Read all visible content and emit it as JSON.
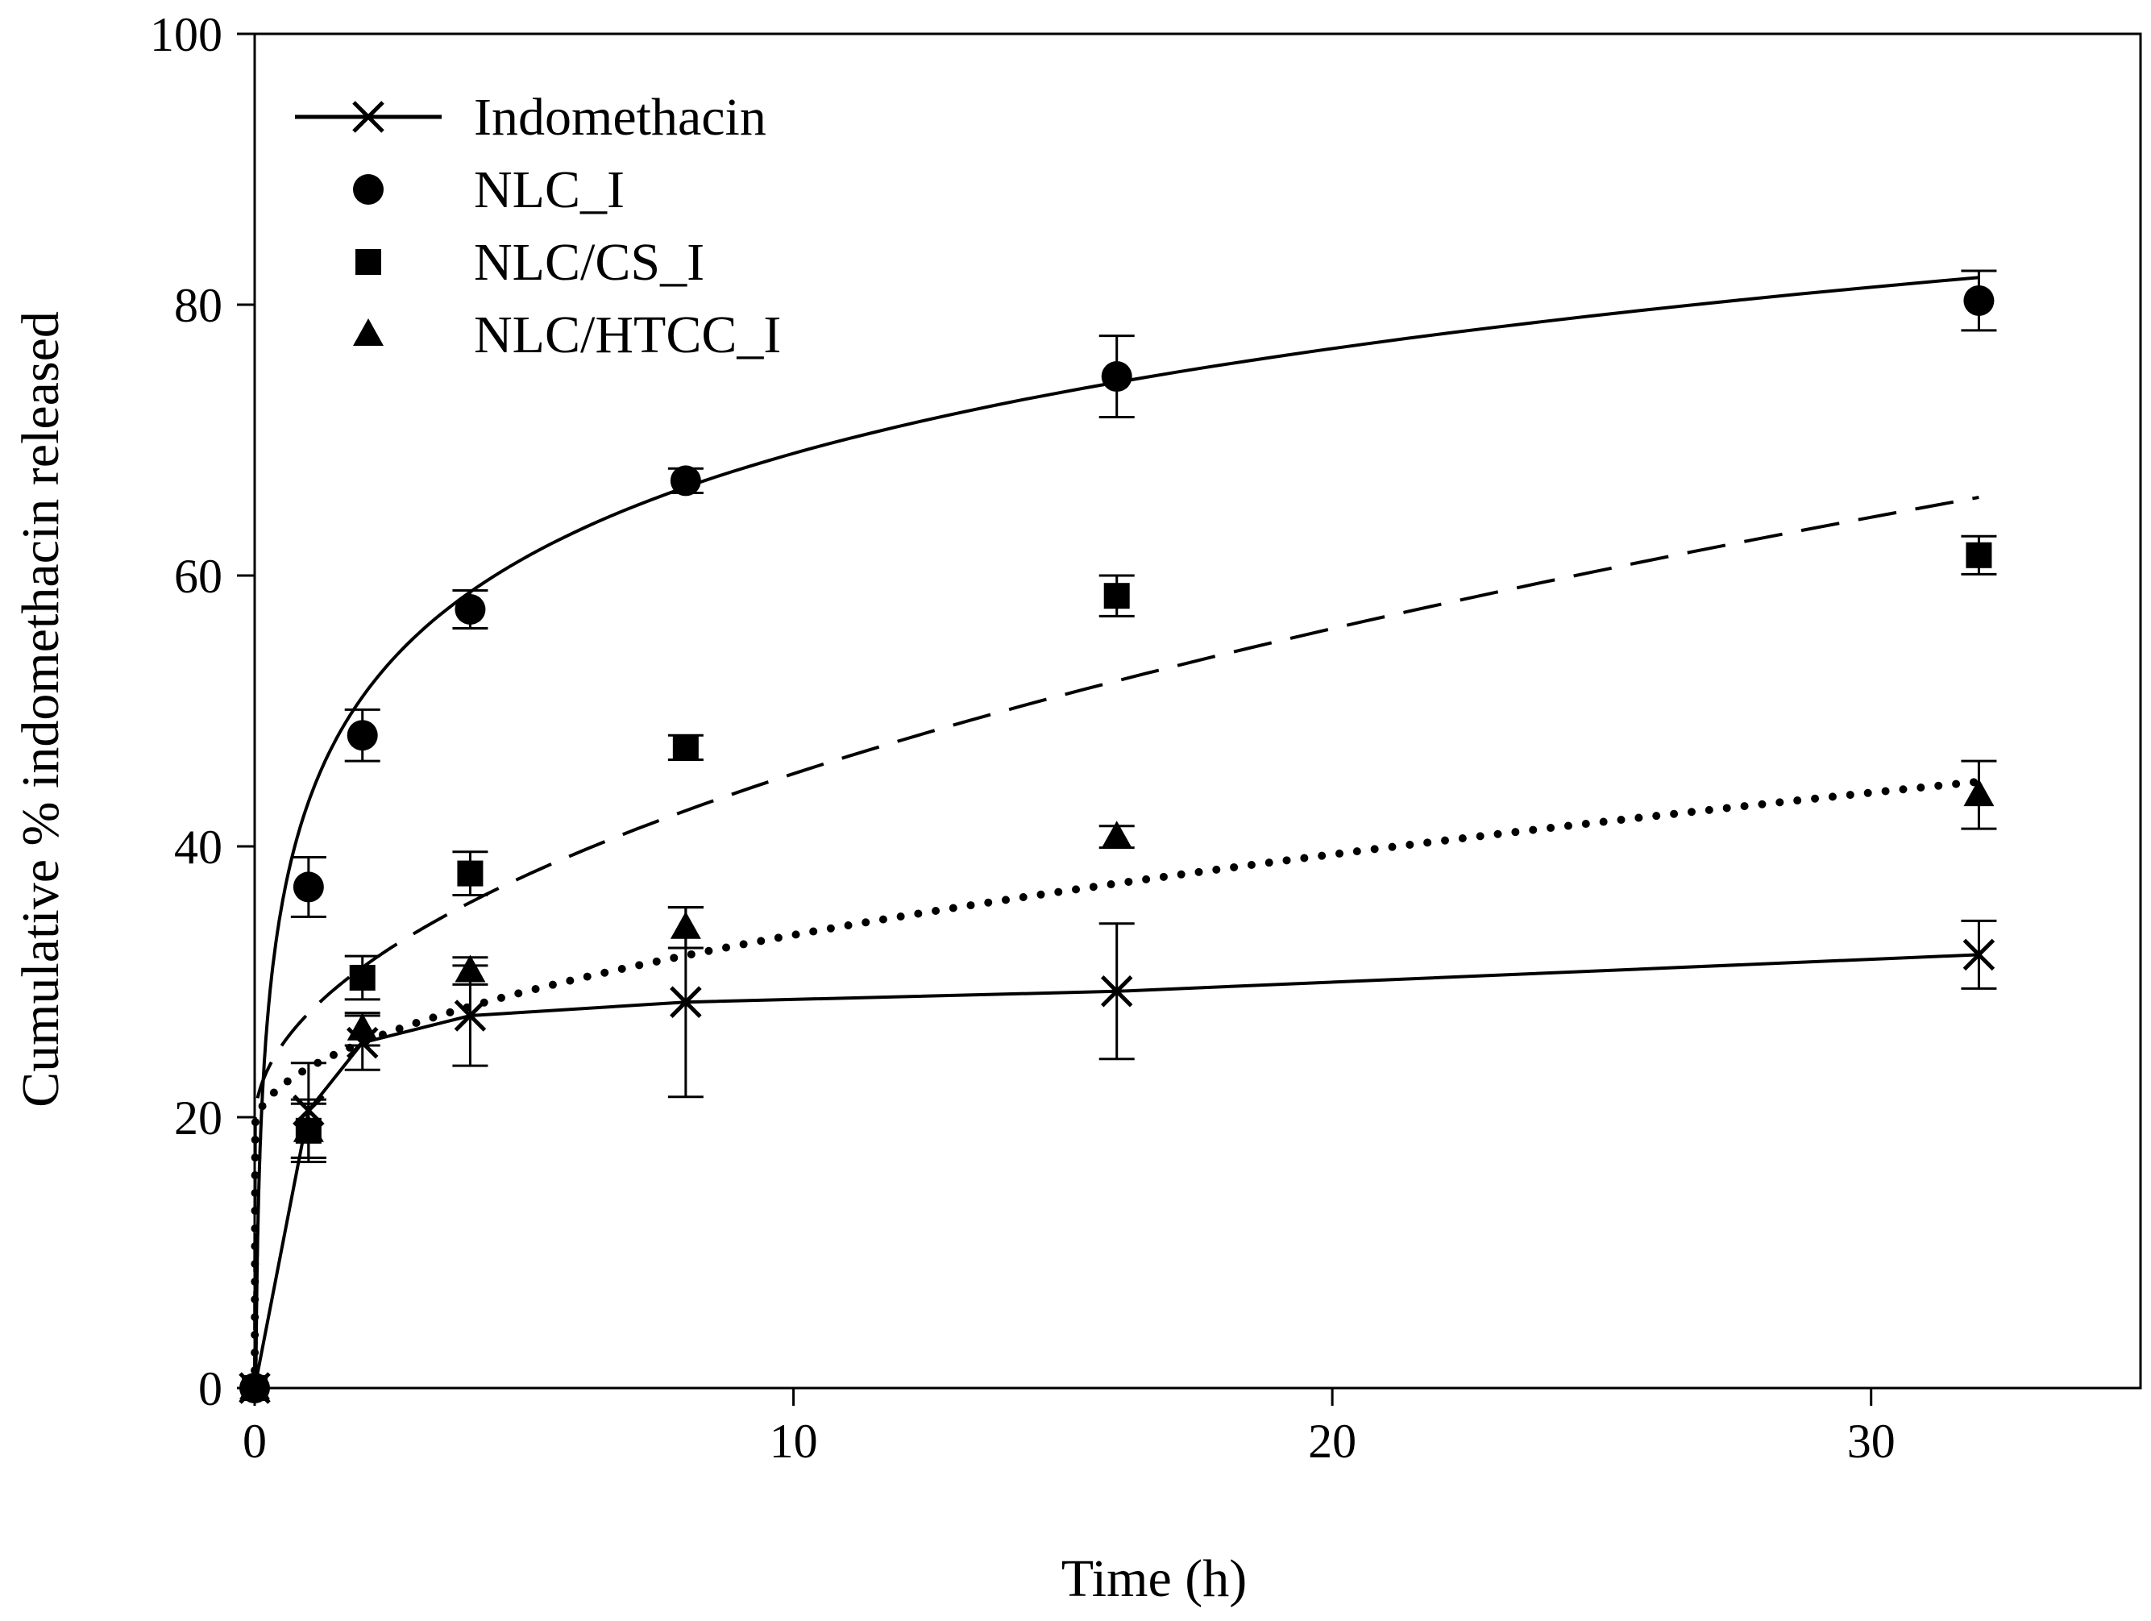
{
  "chart_data": {
    "type": "scatter",
    "title": "",
    "xlabel": "Time (h)",
    "ylabel": "Cumulative % indomethacin released",
    "xlim": [
      0,
      35
    ],
    "ylim": [
      0,
      100
    ],
    "xticks": [
      0,
      10,
      20,
      30
    ],
    "yticks": [
      0,
      20,
      40,
      60,
      80,
      100
    ],
    "xtick_labels": [
      "0",
      "10",
      "20",
      "30"
    ],
    "ytick_labels": [
      "0",
      "20",
      "40",
      "60",
      "80",
      "100"
    ],
    "grid": false,
    "legend_position": "top-left",
    "series": [
      {
        "name": "Indomethacin",
        "marker": "x",
        "line": "solid",
        "x": [
          0,
          1,
          2,
          4,
          8,
          16,
          32
        ],
        "y": [
          0,
          20.5,
          25.5,
          27.5,
          28.5,
          29.3,
          32.0
        ],
        "err": [
          0,
          3.5,
          2.0,
          3.7,
          7.0,
          5.0,
          2.5
        ],
        "fit": {
          "x": [
            0,
            1,
            2,
            4,
            8,
            16,
            32
          ],
          "y": [
            0,
            20.5,
            25.5,
            27.5,
            28.5,
            29.3,
            32.0
          ]
        }
      },
      {
        "name": "NLC_I",
        "marker": "circle",
        "line": "solid",
        "x": [
          0,
          1,
          2,
          4,
          8,
          16,
          32
        ],
        "y": [
          0,
          37.0,
          48.2,
          57.5,
          67.0,
          74.7,
          80.3
        ],
        "err": [
          0,
          2.2,
          1.9,
          1.4,
          0.9,
          3.0,
          2.2
        ],
        "fit": {
          "type": "log",
          "a": 43.3,
          "b": 11.17,
          "x_start": 0.01,
          "x_end": 32
        }
      },
      {
        "name": "NLC/CS_I",
        "marker": "square",
        "line": "dashed",
        "x": [
          0,
          1,
          2,
          4,
          8,
          16,
          32
        ],
        "y": [
          0,
          19.0,
          30.3,
          38.0,
          47.3,
          58.5,
          61.5
        ],
        "err": [
          0,
          2.3,
          1.6,
          1.6,
          0.9,
          1.5,
          1.4
        ],
        "fit": {
          "type": "sqrt",
          "a": 19.5,
          "b": 8.18,
          "x_start": 0.01,
          "x_end": 32
        }
      },
      {
        "name": "NLC/HTCC_I",
        "marker": "triangle",
        "line": "dotted",
        "x": [
          0,
          1,
          2,
          4,
          8,
          16,
          32
        ],
        "y": [
          0,
          19.0,
          26.5,
          30.8,
          34.0,
          40.7,
          43.8
        ],
        "err": [
          0,
          2.0,
          1.2,
          1.0,
          1.5,
          0.8,
          2.5
        ],
        "fit": {
          "type": "sqrt",
          "a": 19.1,
          "b": 4.54,
          "x_start": 0.01,
          "x_end": 32
        }
      }
    ]
  }
}
